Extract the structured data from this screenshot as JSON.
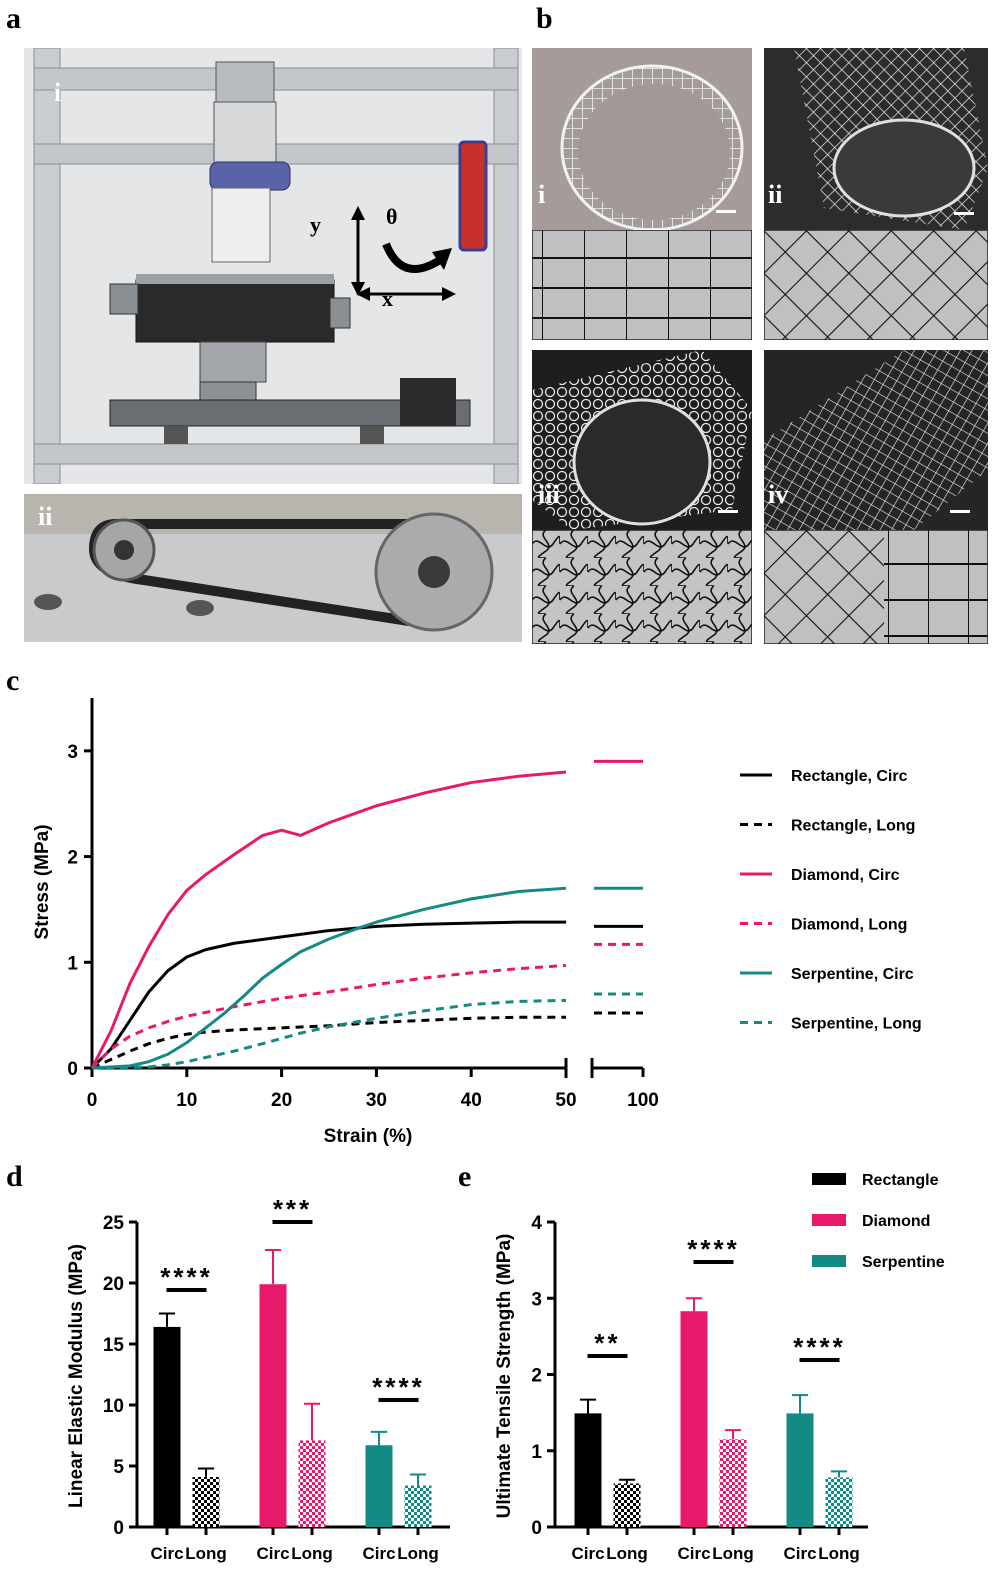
{
  "panels": {
    "a": {
      "letter": "a",
      "sub_i": "i",
      "sub_ii": "ii",
      "axis_y": "y",
      "axis_x": "x",
      "axis_theta": "θ"
    },
    "b": {
      "letter": "b",
      "sub_i": "i",
      "sub_ii": "ii",
      "sub_iii": "iii",
      "sub_iv": "iv"
    },
    "c": {
      "letter": "c"
    },
    "d": {
      "letter": "d"
    },
    "e": {
      "letter": "e"
    }
  },
  "colors": {
    "rectangle": "#000000",
    "diamond": "#e8196b",
    "serpentine": "#138a84"
  },
  "chart_data": [
    {
      "id": "c",
      "type": "line",
      "xlabel": "Strain (%)",
      "ylabel": "Stress (MPa)",
      "xlim": [
        0,
        50
      ],
      "x_break_label": "100",
      "ylim": [
        0,
        3.5
      ],
      "xticks": [
        "0",
        "10",
        "20",
        "30",
        "40",
        "50",
        "100"
      ],
      "yticks": [
        "0",
        "1",
        "2",
        "3"
      ],
      "legend_position": "right",
      "series": [
        {
          "name": "Rectangle, Circ",
          "style": "solid",
          "color": "#000000",
          "x": [
            0,
            2,
            4,
            6,
            8,
            10,
            12,
            15,
            20,
            25,
            30,
            35,
            40,
            45,
            50
          ],
          "y": [
            0,
            0.18,
            0.45,
            0.72,
            0.92,
            1.05,
            1.12,
            1.18,
            1.24,
            1.3,
            1.34,
            1.36,
            1.37,
            1.38,
            1.38
          ],
          "y_at_100": 1.34
        },
        {
          "name": "Rectangle, Long",
          "style": "dashed",
          "color": "#000000",
          "x": [
            0,
            2,
            4,
            6,
            8,
            10,
            12,
            15,
            20,
            25,
            30,
            35,
            40,
            45,
            50
          ],
          "y": [
            0,
            0.08,
            0.16,
            0.23,
            0.28,
            0.32,
            0.34,
            0.36,
            0.38,
            0.4,
            0.43,
            0.45,
            0.47,
            0.48,
            0.48
          ],
          "y_at_100": 0.52
        },
        {
          "name": "Diamond, Circ",
          "style": "solid",
          "color": "#e8196b",
          "x": [
            0,
            2,
            4,
            6,
            8,
            10,
            12,
            15,
            18,
            20,
            22,
            25,
            30,
            35,
            40,
            45,
            50
          ],
          "y": [
            0,
            0.35,
            0.8,
            1.15,
            1.45,
            1.68,
            1.83,
            2.02,
            2.2,
            2.25,
            2.2,
            2.32,
            2.48,
            2.6,
            2.7,
            2.76,
            2.8
          ],
          "y_at_100": 2.9
        },
        {
          "name": "Diamond, Long",
          "style": "dashed",
          "color": "#e8196b",
          "x": [
            0,
            2,
            4,
            6,
            8,
            10,
            15,
            20,
            25,
            30,
            35,
            40,
            45,
            50
          ],
          "y": [
            0,
            0.18,
            0.3,
            0.38,
            0.44,
            0.49,
            0.58,
            0.66,
            0.72,
            0.79,
            0.85,
            0.9,
            0.94,
            0.97
          ],
          "y_at_100": 1.17
        },
        {
          "name": "Serpentine, Circ",
          "style": "solid",
          "color": "#138a84",
          "x": [
            0,
            4,
            6,
            8,
            10,
            12,
            14,
            16,
            18,
            20,
            22,
            25,
            28,
            30,
            35,
            40,
            45,
            50
          ],
          "y": [
            0,
            0.02,
            0.06,
            0.13,
            0.24,
            0.38,
            0.52,
            0.68,
            0.85,
            0.98,
            1.1,
            1.22,
            1.32,
            1.38,
            1.5,
            1.6,
            1.67,
            1.7
          ],
          "y_at_100": 1.7
        },
        {
          "name": "Serpentine, Long",
          "style": "dashed",
          "color": "#138a84",
          "x": [
            0,
            6,
            8,
            10,
            12,
            15,
            18,
            20,
            22,
            25,
            30,
            35,
            40,
            45,
            50
          ],
          "y": [
            0,
            0.01,
            0.03,
            0.06,
            0.1,
            0.16,
            0.23,
            0.28,
            0.33,
            0.39,
            0.47,
            0.54,
            0.6,
            0.63,
            0.64
          ],
          "y_at_100": 0.7
        }
      ]
    },
    {
      "id": "d",
      "type": "bar",
      "ylabel": "Linear Elastic Modulus (MPa)",
      "ylim": [
        0,
        25
      ],
      "yticks": [
        "0",
        "5",
        "10",
        "15",
        "20",
        "25"
      ],
      "categories": [
        "Circ",
        "Long",
        "Circ",
        "Long",
        "Circ",
        "Long"
      ],
      "groups": [
        "Rectangle",
        "Diamond",
        "Serpentine"
      ],
      "values": [
        16.4,
        4.1,
        19.9,
        7.1,
        6.7,
        3.4
      ],
      "errors": [
        1.1,
        0.7,
        2.8,
        3.0,
        1.1,
        0.9
      ],
      "significance": [
        "****",
        "***",
        "****"
      ]
    },
    {
      "id": "e",
      "type": "bar",
      "ylabel": "Ultimate Tensile Strength (MPa)",
      "ylim": [
        0,
        4
      ],
      "yticks": [
        "0",
        "1",
        "2",
        "3",
        "4"
      ],
      "categories": [
        "Circ",
        "Long",
        "Circ",
        "Long",
        "Circ",
        "Long"
      ],
      "groups": [
        "Rectangle",
        "Diamond",
        "Serpentine"
      ],
      "values": [
        1.49,
        0.57,
        2.83,
        1.15,
        1.49,
        0.65
      ],
      "errors": [
        0.18,
        0.05,
        0.17,
        0.12,
        0.24,
        0.08
      ],
      "significance": [
        "**",
        "****",
        "****"
      ],
      "legend": [
        "Rectangle",
        "Diamond",
        "Serpentine"
      ],
      "legend_position": "top-right"
    }
  ]
}
